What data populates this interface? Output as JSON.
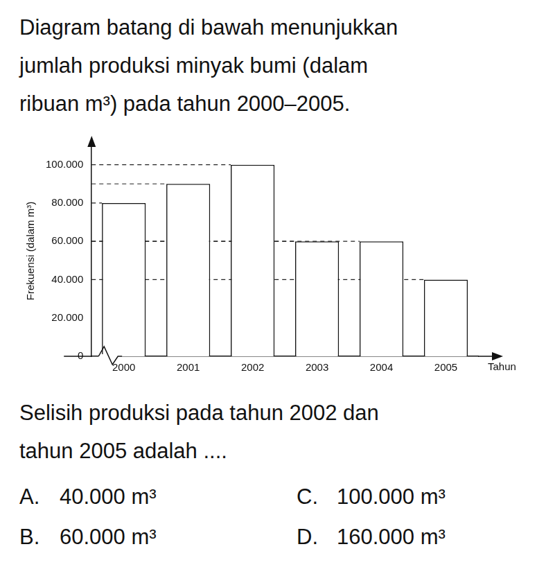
{
  "document": {
    "intro": [
      "Diagram batang di bawah menunjukkan",
      "jumlah produksi minyak bumi (dalam",
      "ribuan m³) pada tahun 2000–2005."
    ],
    "question": [
      "Selisih produksi pada tahun 2002 dan",
      "tahun 2005 adalah ...."
    ],
    "options": [
      {
        "letter": "A.",
        "text": "40.000 m³"
      },
      {
        "letter": "B.",
        "text": "60.000 m³"
      },
      {
        "letter": "C.",
        "text": "100.000 m³"
      },
      {
        "letter": "D.",
        "text": "160.000 m³"
      }
    ]
  },
  "chart_data": {
    "type": "bar",
    "y_label": "Frekuensi (dalam m³)",
    "x_label": "Tahun",
    "categories": [
      "2000",
      "2001",
      "2002",
      "2003",
      "2004",
      "2005"
    ],
    "values": [
      80000,
      90000,
      100000,
      60000,
      60000,
      40000
    ],
    "color": "#ffffff",
    "ylim": [
      0,
      110000
    ],
    "yticks": [
      0,
      {
        "value": 20000,
        "label": "20.000"
      },
      {
        "value": 40000,
        "label": "40.000"
      },
      {
        "value": 60000,
        "label": "60.000"
      },
      {
        "value": 80000,
        "label": "80.000"
      },
      {
        "value": 100000,
        "label": "100.000"
      }
    ]
  }
}
